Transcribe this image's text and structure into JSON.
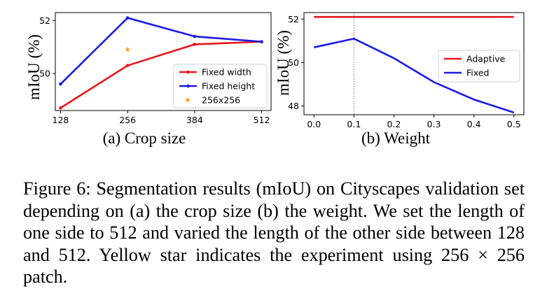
{
  "chart_data": [
    {
      "type": "line",
      "subcaption": "(a) Crop size",
      "ylabel": "mIoU (%)",
      "xlabel": "",
      "x": [
        128,
        256,
        384,
        512
      ],
      "xticks": [
        "128",
        "256",
        "384",
        "512"
      ],
      "xlim": [
        118,
        530
      ],
      "ylim": [
        48.6,
        52.3
      ],
      "yticks": [
        50,
        52
      ],
      "ytick_labels": [
        "50",
        "52"
      ],
      "grid": false,
      "legend_position": "lower-right",
      "series": [
        {
          "name": "Fixed width",
          "values": [
            48.7,
            50.3,
            51.1,
            51.2
          ],
          "color": "#e8161b",
          "marker": "dot"
        },
        {
          "name": "Fixed height",
          "values": [
            49.6,
            52.1,
            51.4,
            51.2
          ],
          "color": "#1b1be6",
          "marker": "dot"
        }
      ],
      "points": [
        {
          "name": "256x256",
          "x": 256,
          "y": 50.9,
          "color": "#f5a623",
          "marker": "star"
        }
      ]
    },
    {
      "type": "line",
      "subcaption": "(b) Weight",
      "ylabel": "mIoU (%)",
      "xlabel": "",
      "x": [
        0.0,
        0.1,
        0.2,
        0.3,
        0.4,
        0.5
      ],
      "xticks": [
        "0.0",
        "0.1",
        "0.2",
        "0.3",
        "0.4",
        "0.5"
      ],
      "xlim": [
        -0.025,
        0.525
      ],
      "ylim": [
        47.6,
        52.3
      ],
      "yticks": [
        48,
        50,
        52
      ],
      "ytick_labels": [
        "48",
        "50",
        "52"
      ],
      "grid": false,
      "vline_x": 0.1,
      "legend_position": "center-right",
      "series": [
        {
          "name": "Adaptive",
          "values": [
            52.1,
            52.1,
            52.1,
            52.1,
            52.1,
            52.1
          ],
          "color": "#e8161b",
          "marker": "none"
        },
        {
          "name": "Fixed",
          "values": [
            50.7,
            51.1,
            50.2,
            49.1,
            48.3,
            47.7
          ],
          "color": "#1b1be6",
          "marker": "none"
        }
      ]
    }
  ],
  "caption": {
    "label": "Figure 6:",
    "text": "Segmentation results (mIoU) on Cityscapes validation set depending on (a) the crop size (b) the weight. We set the length of one side to 512 and varied the length of the other side between 128 and 512. Yellow star indicates the experiment using",
    "math": "256 × 256",
    "tail": "patch."
  }
}
